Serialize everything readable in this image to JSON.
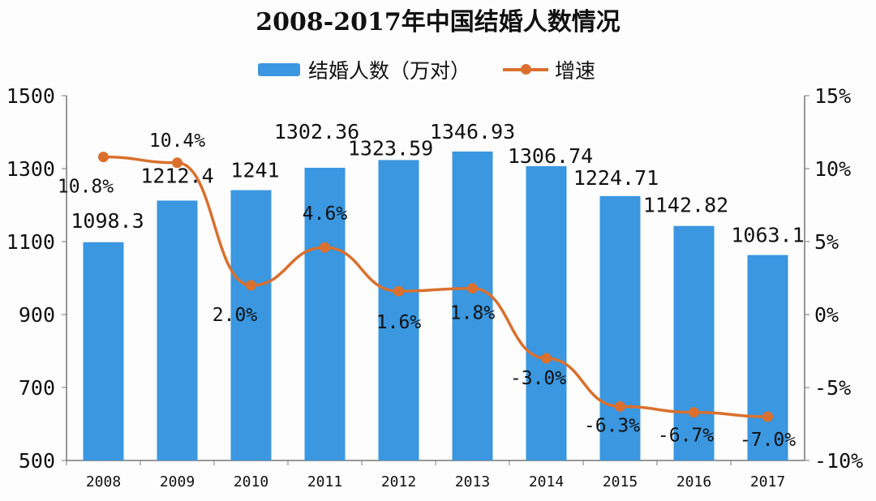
{
  "chart_data": {
    "type": "bar",
    "title": "2008-2017年中国结婚人数情况",
    "categories": [
      "2008",
      "2009",
      "2010",
      "2011",
      "2012",
      "2013",
      "2014",
      "2015",
      "2016",
      "2017"
    ],
    "series": [
      {
        "name": "结婚人数（万对）",
        "type": "bar",
        "axis": "left",
        "color": "#3a97e0",
        "values": [
          1098.3,
          1212.4,
          1241,
          1302.36,
          1323.59,
          1346.93,
          1306.74,
          1224.71,
          1142.82,
          1063.1
        ],
        "labels": [
          "1098.3",
          "1212.4",
          "1241",
          "1302.36",
          "1323.59",
          "1346.93",
          "1306.74",
          "1224.71",
          "1142.82",
          "1063.1"
        ]
      },
      {
        "name": "增速",
        "type": "line",
        "axis": "right",
        "color": "#d9702e",
        "values": [
          10.8,
          10.4,
          2.0,
          4.6,
          1.6,
          1.8,
          -3.0,
          -6.3,
          -6.7,
          -7.0
        ],
        "labels": [
          "10.8%",
          "10.4%",
          "2.0%",
          "4.6%",
          "1.6%",
          "1.8%",
          "-3.0%",
          "-6.3%",
          "-6.7%",
          "-7.0%"
        ]
      }
    ],
    "y_left": {
      "range": [
        500,
        1500
      ],
      "ticks": [
        "500",
        "700",
        "900",
        "1100",
        "1300",
        "1500"
      ]
    },
    "y_right": {
      "range": [
        -10,
        15
      ],
      "ticks": [
        "-10%",
        "-5%",
        "0%",
        "5%",
        "10%",
        "15%"
      ]
    },
    "grid": false,
    "legend": "top"
  }
}
